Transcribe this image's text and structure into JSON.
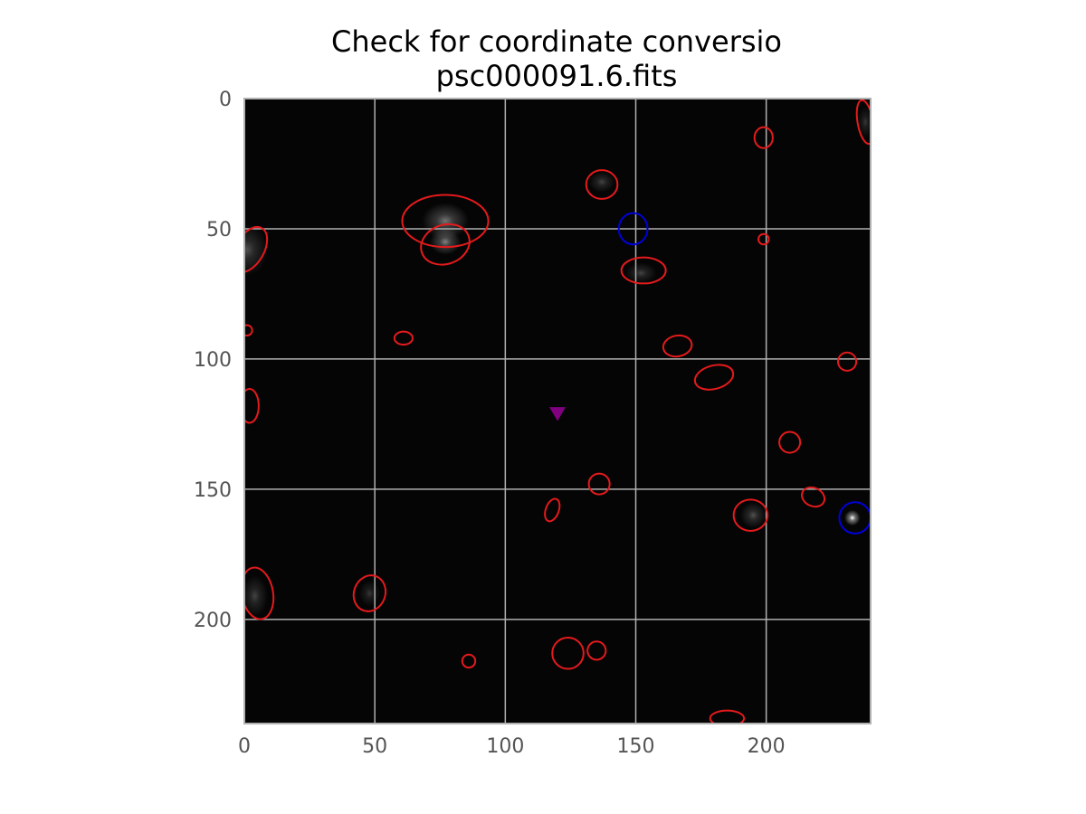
{
  "chart_data": {
    "type": "scatter",
    "title": "Check for coordinate conversio",
    "subtitle": "psc000091.6.fits",
    "xlabel": "",
    "ylabel": "",
    "xlim": [
      0,
      240
    ],
    "ylim": [
      240,
      0
    ],
    "y_inverted": true,
    "xticks": [
      0,
      50,
      100,
      150,
      200
    ],
    "yticks": [
      0,
      50,
      100,
      150,
      200
    ],
    "grid": true,
    "background_image": "grayscale FITS image, mostly black",
    "colors": {
      "source_ellipse": "#e41a1c",
      "reference_circle": "#0000dd",
      "marker": "#800080",
      "grid": "#b0b0b0",
      "axes_frame": "#b0b0b0"
    },
    "glows": [
      {
        "x": 77,
        "y": 47,
        "rx": 9,
        "ry": 7,
        "intensity": 0.45
      },
      {
        "x": 77,
        "y": 55,
        "rx": 6,
        "ry": 5,
        "intensity": 0.5
      },
      {
        "x": 1,
        "y": 58,
        "rx": 8,
        "ry": 10,
        "intensity": 0.3
      },
      {
        "x": 137,
        "y": 32,
        "rx": 5,
        "ry": 4,
        "intensity": 0.25
      },
      {
        "x": 152,
        "y": 67,
        "rx": 6,
        "ry": 4,
        "intensity": 0.25
      },
      {
        "x": 195,
        "y": 160,
        "rx": 5,
        "ry": 5,
        "intensity": 0.3
      },
      {
        "x": 233,
        "y": 161,
        "rx": 3,
        "ry": 3,
        "intensity": 1.0
      },
      {
        "x": 4,
        "y": 191,
        "rx": 5,
        "ry": 8,
        "intensity": 0.25
      },
      {
        "x": 48,
        "y": 190,
        "rx": 4,
        "ry": 5,
        "intensity": 0.2
      },
      {
        "x": 238,
        "y": 9,
        "rx": 3,
        "ry": 6,
        "intensity": 0.2
      }
    ],
    "series": [
      {
        "marker": "ellipse",
        "points": [
          {
            "x": 238,
            "y": 9,
            "w": 6,
            "h": 17,
            "angle": -10
          },
          {
            "x": 199,
            "y": 15,
            "w": 7,
            "h": 8,
            "angle": 0
          },
          {
            "x": 137,
            "y": 33,
            "w": 12,
            "h": 11,
            "angle": 0
          },
          {
            "x": 77,
            "y": 47,
            "w": 33,
            "h": 20,
            "angle": 0
          },
          {
            "x": 77,
            "y": 56,
            "w": 19,
            "h": 15,
            "angle": -20
          },
          {
            "x": 2,
            "y": 58,
            "w": 11,
            "h": 19,
            "angle": 30
          },
          {
            "x": 199,
            "y": 54,
            "w": 4,
            "h": 4,
            "angle": 0
          },
          {
            "x": 153,
            "y": 66,
            "w": 17,
            "h": 10,
            "angle": 0
          },
          {
            "x": 1,
            "y": 89,
            "w": 4,
            "h": 4,
            "angle": 0
          },
          {
            "x": 61,
            "y": 92,
            "w": 7,
            "h": 5,
            "angle": 0
          },
          {
            "x": 166,
            "y": 95,
            "w": 11,
            "h": 8,
            "angle": -10
          },
          {
            "x": 180,
            "y": 107,
            "w": 15,
            "h": 9,
            "angle": -15
          },
          {
            "x": 231,
            "y": 101,
            "w": 7,
            "h": 7,
            "angle": 0
          },
          {
            "x": 2,
            "y": 118,
            "w": 7,
            "h": 13,
            "angle": 0
          },
          {
            "x": 209,
            "y": 132,
            "w": 8,
            "h": 8,
            "angle": 0
          },
          {
            "x": 136,
            "y": 148,
            "w": 8,
            "h": 8,
            "angle": 0
          },
          {
            "x": 118,
            "y": 158,
            "w": 5,
            "h": 9,
            "angle": 20
          },
          {
            "x": 194,
            "y": 160,
            "w": 13,
            "h": 12,
            "angle": 0
          },
          {
            "x": 218,
            "y": 153,
            "w": 9,
            "h": 7,
            "angle": 25
          },
          {
            "x": 5,
            "y": 190,
            "w": 12,
            "h": 20,
            "angle": -10
          },
          {
            "x": 48,
            "y": 190,
            "w": 12,
            "h": 14,
            "angle": 20
          },
          {
            "x": 124,
            "y": 213,
            "w": 12,
            "h": 12,
            "angle": 0
          },
          {
            "x": 135,
            "y": 212,
            "w": 7,
            "h": 7,
            "angle": 0
          },
          {
            "x": 86,
            "y": 216,
            "w": 5,
            "h": 5,
            "angle": 0
          },
          {
            "x": 185,
            "y": 238,
            "w": 13,
            "h": 6,
            "angle": 0
          }
        ]
      },
      {
        "marker": "circle",
        "points": [
          {
            "x": 149,
            "y": 50,
            "w": 11,
            "h": 12
          },
          {
            "x": 234,
            "y": 161,
            "w": 12,
            "h": 12
          }
        ]
      },
      {
        "marker": "triangle-down",
        "points": [
          {
            "x": 120,
            "y": 121
          }
        ]
      }
    ]
  }
}
